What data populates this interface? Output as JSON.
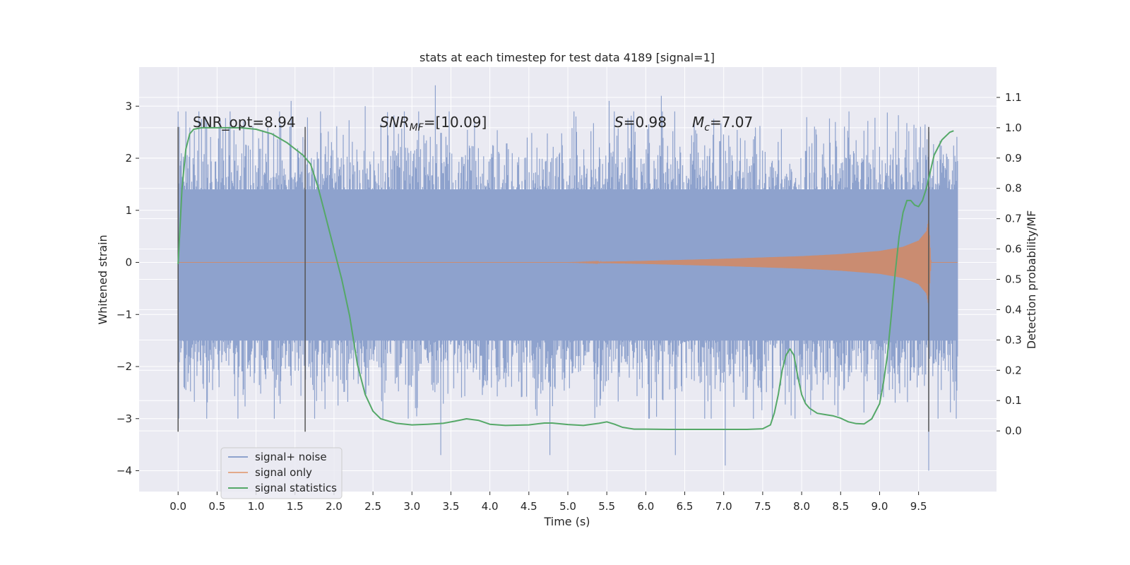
{
  "chart_data": {
    "type": "line",
    "title": "stats at each timestep for test data 4189 [signal=1]",
    "xlabel": "Time (s)",
    "ylabel": "Whitened strain",
    "y2label": "Detection probability/MF",
    "xlim": [
      -0.5,
      10.5
    ],
    "ylim": [
      -4.4,
      3.75
    ],
    "y2lim": [
      -0.2,
      1.2
    ],
    "grid": true,
    "legend_position": "lower-left",
    "x_ticks": [
      0.0,
      0.5,
      1.0,
      1.5,
      2.0,
      2.5,
      3.0,
      3.5,
      4.0,
      4.5,
      5.0,
      5.5,
      6.0,
      6.5,
      7.0,
      7.5,
      8.0,
      8.5,
      9.0,
      9.5
    ],
    "x_tick_labels": [
      "0.0",
      "0.5",
      "1.0",
      "1.5",
      "2.0",
      "2.5",
      "3.0",
      "3.5",
      "4.0",
      "4.5",
      "5.0",
      "5.5",
      "6.0",
      "6.5",
      "7.0",
      "7.5",
      "8.0",
      "8.5",
      "9.0",
      "9.5"
    ],
    "y_ticks": [
      -4,
      -3,
      -2,
      -1,
      0,
      1,
      2,
      3
    ],
    "y_tick_labels": [
      "−4",
      "−3",
      "−2",
      "−1",
      "0",
      "1",
      "2",
      "3"
    ],
    "y2_ticks": [
      0.0,
      0.1,
      0.2,
      0.3,
      0.4,
      0.5,
      0.6,
      0.7,
      0.8,
      0.9,
      1.0,
      1.1
    ],
    "y2_tick_labels": [
      "0.0",
      "0.1",
      "0.2",
      "0.3",
      "0.4",
      "0.5",
      "0.6",
      "0.7",
      "0.8",
      "0.9",
      "1.0",
      "1.1"
    ],
    "annotations": {
      "snr_opt": "SNR_opt=8.94",
      "snr_mf_main": "SNR",
      "snr_mf_sub": "MF",
      "snr_mf_value": "=[10.09]",
      "s_label": "S",
      "s_value": "=0.98",
      "mc_main": "M",
      "mc_sub": "c",
      "mc_value": "=7.07"
    },
    "vertical_markers": [
      0.0,
      1.63,
      9.63
    ],
    "vertical_marker_range": [
      -3.25,
      2.6
    ],
    "series": [
      {
        "name": "signal+ noise",
        "color": "#8ea2cd",
        "x_range": [
          0.0,
          10.0
        ],
        "envelope_upper": 1.4,
        "envelope_lower": -1.5,
        "spike_extremes": [
          [
            3.3,
            3.4
          ],
          [
            3.37,
            -3.7
          ],
          [
            4.77,
            -3.7
          ],
          [
            6.38,
            -3.7
          ],
          [
            7.02,
            -3.9
          ],
          [
            9.63,
            -4.0
          ],
          [
            6.2,
            3.2
          ],
          [
            5.53,
            3.1
          ],
          [
            1.45,
            3.1
          ],
          [
            2.4,
            3.0
          ]
        ]
      },
      {
        "name": "signal only",
        "color": "#dd8452",
        "x": [
          0.0,
          5.0,
          6.0,
          7.0,
          8.0,
          8.5,
          9.0,
          9.3,
          9.5,
          9.6,
          9.63,
          9.66,
          10.0
        ],
        "amplitude": [
          0.0,
          0.0,
          0.03,
          0.07,
          0.12,
          0.16,
          0.22,
          0.3,
          0.42,
          0.6,
          0.85,
          0.0,
          0.0
        ]
      },
      {
        "name": "signal statistics",
        "color": "#55a868",
        "axis": "right",
        "x": [
          0.0,
          0.05,
          0.1,
          0.15,
          0.2,
          0.3,
          0.5,
          0.8,
          1.0,
          1.2,
          1.4,
          1.6,
          1.7,
          1.8,
          1.9,
          2.0,
          2.1,
          2.2,
          2.3,
          2.4,
          2.5,
          2.6,
          2.8,
          3.0,
          3.2,
          3.4,
          3.55,
          3.7,
          3.85,
          4.0,
          4.2,
          4.5,
          4.7,
          4.8,
          5.0,
          5.2,
          5.4,
          5.5,
          5.6,
          5.7,
          5.85,
          6.0,
          6.3,
          6.5,
          7.0,
          7.3,
          7.5,
          7.6,
          7.65,
          7.7,
          7.75,
          7.8,
          7.85,
          7.9,
          7.95,
          8.0,
          8.05,
          8.1,
          8.2,
          8.3,
          8.4,
          8.5,
          8.6,
          8.7,
          8.8,
          8.9,
          9.0,
          9.05,
          9.1,
          9.15,
          9.2,
          9.25,
          9.3,
          9.35,
          9.4,
          9.45,
          9.5,
          9.55,
          9.6,
          9.7,
          9.8,
          9.9,
          9.95
        ],
        "values": [
          0.55,
          0.8,
          0.93,
          0.98,
          0.995,
          1.0,
          1.0,
          1.0,
          0.995,
          0.98,
          0.95,
          0.91,
          0.88,
          0.8,
          0.7,
          0.6,
          0.5,
          0.38,
          0.22,
          0.12,
          0.065,
          0.04,
          0.025,
          0.02,
          0.022,
          0.025,
          0.032,
          0.04,
          0.035,
          0.022,
          0.018,
          0.02,
          0.026,
          0.026,
          0.021,
          0.018,
          0.025,
          0.03,
          0.022,
          0.012,
          0.006,
          0.006,
          0.005,
          0.005,
          0.005,
          0.005,
          0.007,
          0.02,
          0.06,
          0.12,
          0.2,
          0.25,
          0.27,
          0.25,
          0.18,
          0.12,
          0.09,
          0.075,
          0.058,
          0.054,
          0.05,
          0.042,
          0.03,
          0.024,
          0.023,
          0.04,
          0.09,
          0.16,
          0.25,
          0.38,
          0.52,
          0.64,
          0.72,
          0.76,
          0.76,
          0.745,
          0.74,
          0.76,
          0.8,
          0.91,
          0.96,
          0.985,
          0.99
        ]
      }
    ]
  }
}
